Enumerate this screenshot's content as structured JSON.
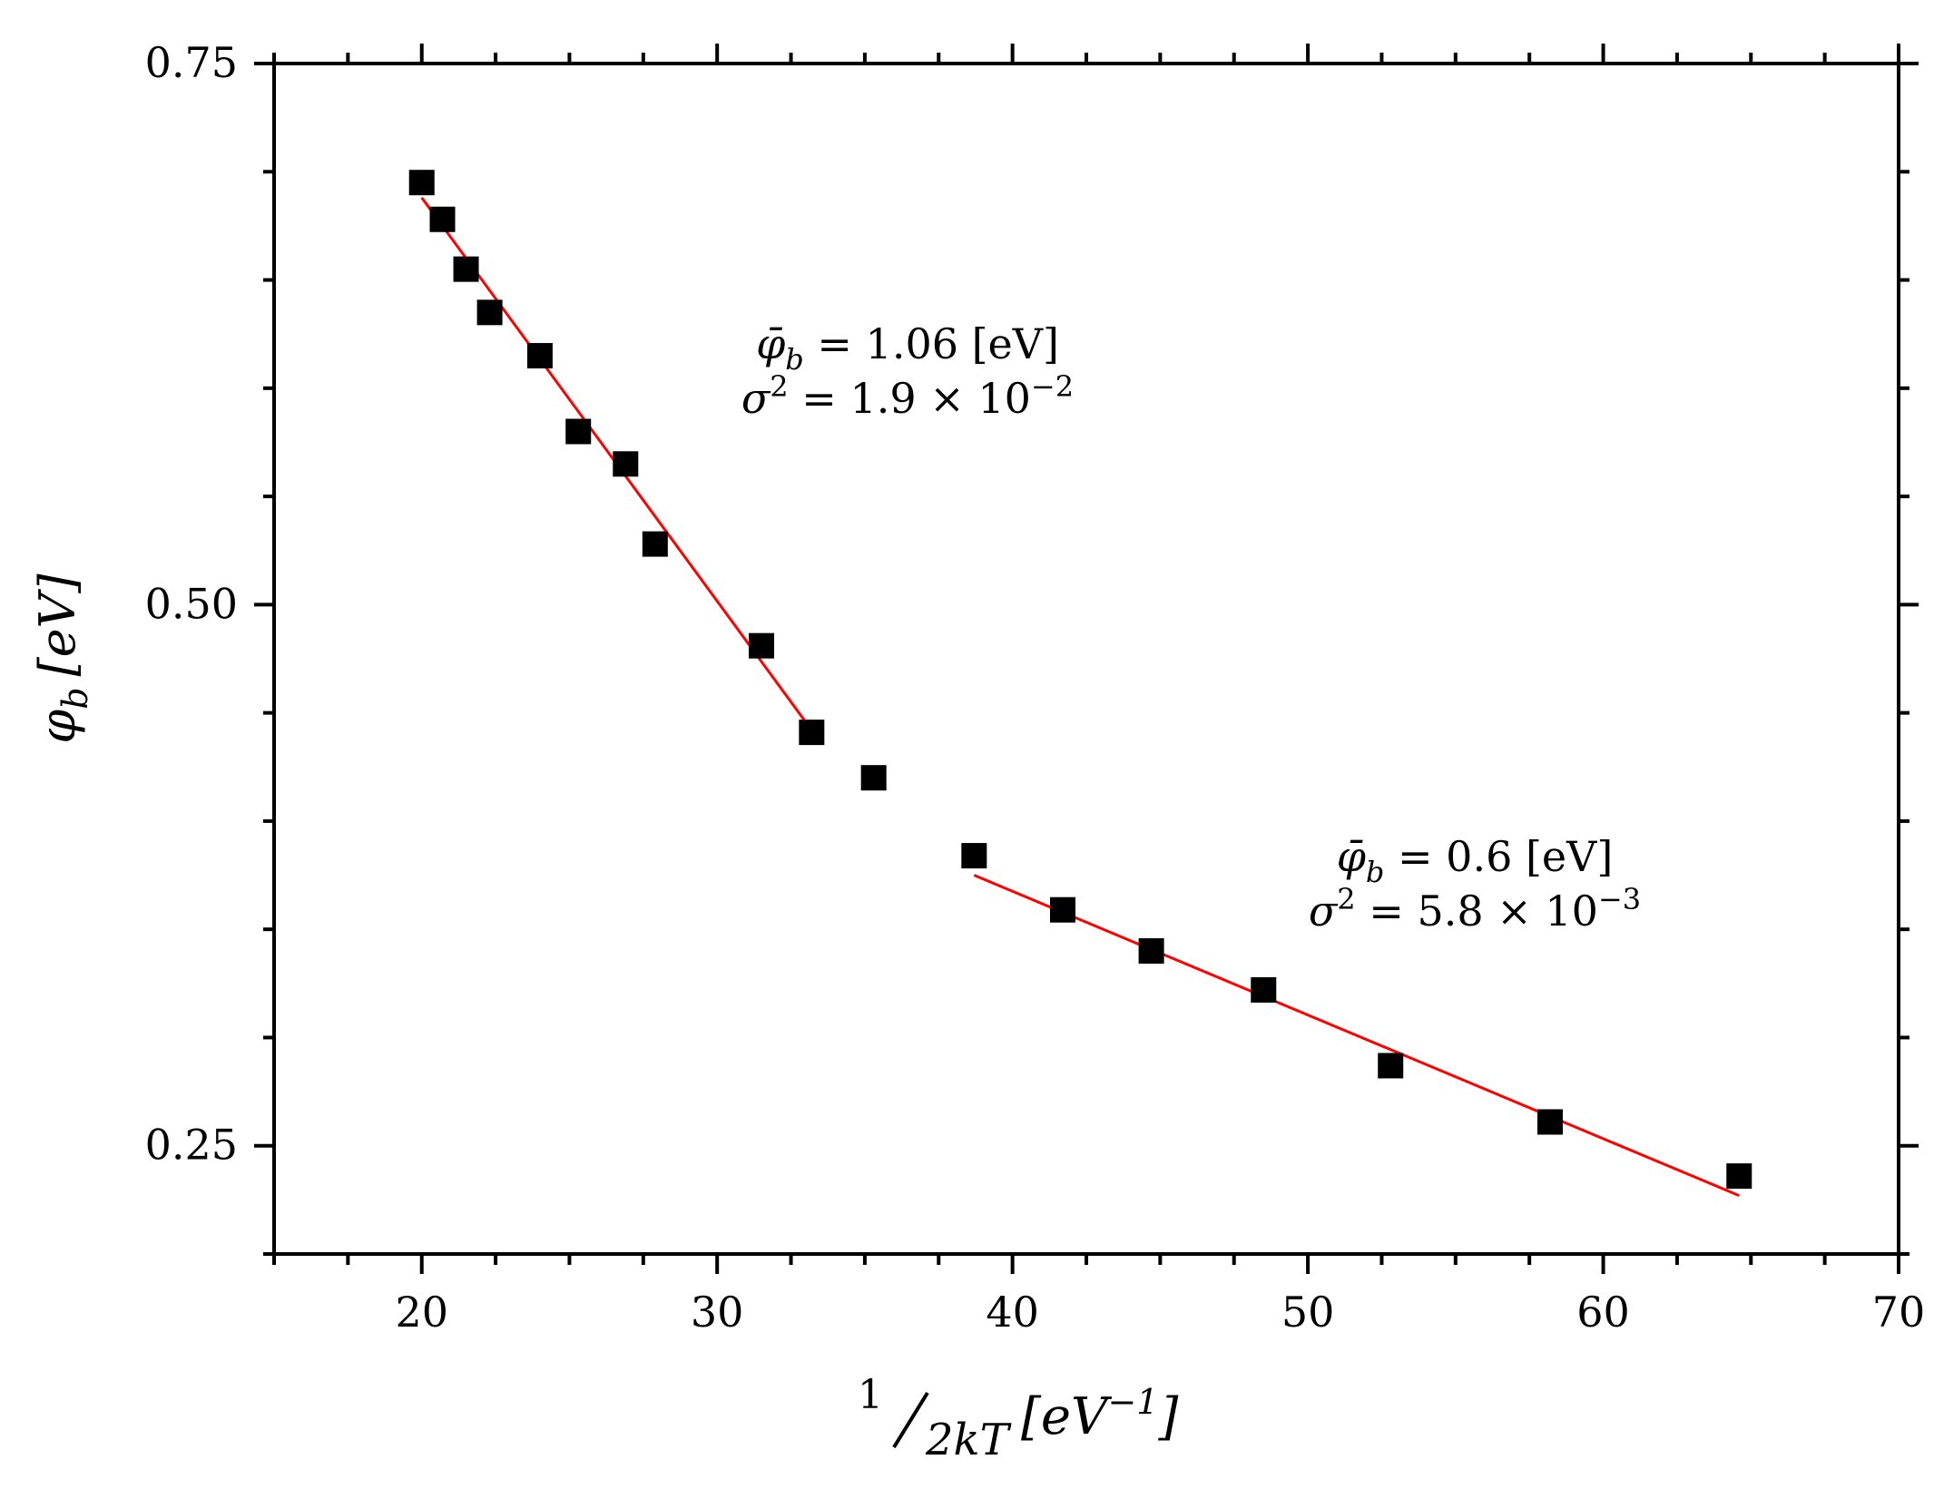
{
  "chart_data": {
    "type": "scatter",
    "title": "",
    "xlabel": {
      "numerator": "1",
      "denominator": "2kT",
      "unit_prefix": "[eV",
      "unit_exponent": "−1",
      "unit_suffix": "]"
    },
    "ylabel": {
      "symbol": "φ",
      "subscript": "b",
      "unit": "[eV]"
    },
    "xlim": [
      15,
      70
    ],
    "ylim": [
      0.2,
      0.75
    ],
    "xticks": [
      20,
      30,
      40,
      50,
      60,
      70
    ],
    "xtick_labels": [
      "20",
      "30",
      "40",
      "50",
      "60",
      "70"
    ],
    "yticks": [
      0.25,
      0.5,
      0.75
    ],
    "ytick_labels": [
      "0.25",
      "0.50",
      "0.75"
    ],
    "x_minor_step": 2.5,
    "y_minor_step": 0.05,
    "series": [
      {
        "name": "measured",
        "marker": "square",
        "color": "#000000",
        "x": [
          20.0,
          20.7,
          21.5,
          22.3,
          24.0,
          25.3,
          26.9,
          27.9,
          31.5,
          33.2,
          35.3,
          38.7,
          41.7,
          44.7,
          48.5,
          52.8,
          58.2,
          64.6
        ],
        "y": [
          0.695,
          0.678,
          0.655,
          0.635,
          0.615,
          0.58,
          0.565,
          0.528,
          0.481,
          0.441,
          0.42,
          0.384,
          0.359,
          0.34,
          0.322,
          0.287,
          0.261,
          0.236
        ]
      }
    ],
    "fits": [
      {
        "name": "fit-high-T",
        "color": "#ff0000",
        "x": [
          20.0,
          33.2
        ],
        "y": [
          0.688,
          0.442
        ]
      },
      {
        "name": "fit-low-T",
        "color": "#ff0000",
        "x": [
          38.7,
          64.6
        ],
        "y": [
          0.375,
          0.227
        ]
      }
    ],
    "annotations": [
      {
        "name": "fit-high-T-label",
        "phi": "φ̄",
        "phi_sub": "b",
        "phi_value": " = 1.06 [eV]",
        "sigma": "σ",
        "sigma_sup": "2",
        "sigma_value": " = 1.9 × 10",
        "sigma_exp": "−2"
      },
      {
        "name": "fit-low-T-label",
        "phi": "φ̄",
        "phi_sub": "b",
        "phi_value": " = 0.6 [eV]",
        "sigma": "σ",
        "sigma_sup": "2",
        "sigma_value": " = 5.8 × 10",
        "sigma_exp": "−3"
      }
    ]
  }
}
